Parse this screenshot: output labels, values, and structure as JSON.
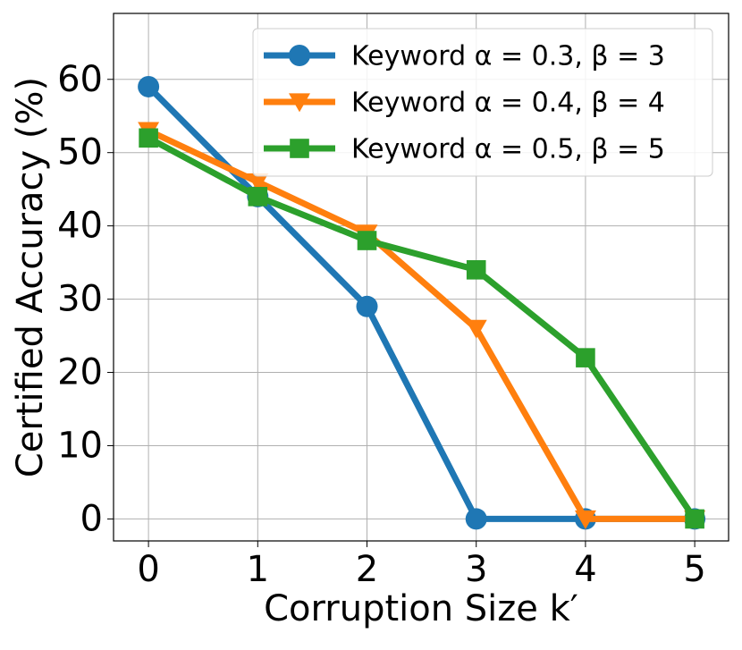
{
  "chart_data": {
    "type": "line",
    "x": [
      0,
      1,
      2,
      3,
      4,
      5
    ],
    "xlabel": "Corruption Size k′",
    "ylabel": "Certified Accuracy (%)",
    "series": [
      {
        "name": "Keyword α = 0.3, β = 3",
        "color": "#1f77b4",
        "marker": "circle",
        "values": [
          59,
          44,
          29,
          0,
          0,
          0
        ]
      },
      {
        "name": "Keyword α = 0.4, β = 4",
        "color": "#ff7f0e",
        "marker": "triangle-down",
        "values": [
          53,
          46,
          39,
          26,
          0,
          0
        ]
      },
      {
        "name": "Keyword α = 0.5, β = 5",
        "color": "#2ca02c",
        "marker": "square",
        "values": [
          52,
          44,
          38,
          34,
          22,
          0
        ]
      }
    ],
    "xlim": [
      -0.32,
      5.31
    ],
    "ylim": [
      -3,
      69
    ],
    "xticks": [
      0,
      1,
      2,
      3,
      4,
      5
    ],
    "yticks": [
      0,
      10,
      20,
      30,
      40,
      50,
      60
    ],
    "grid": true,
    "legend": "upper right"
  }
}
